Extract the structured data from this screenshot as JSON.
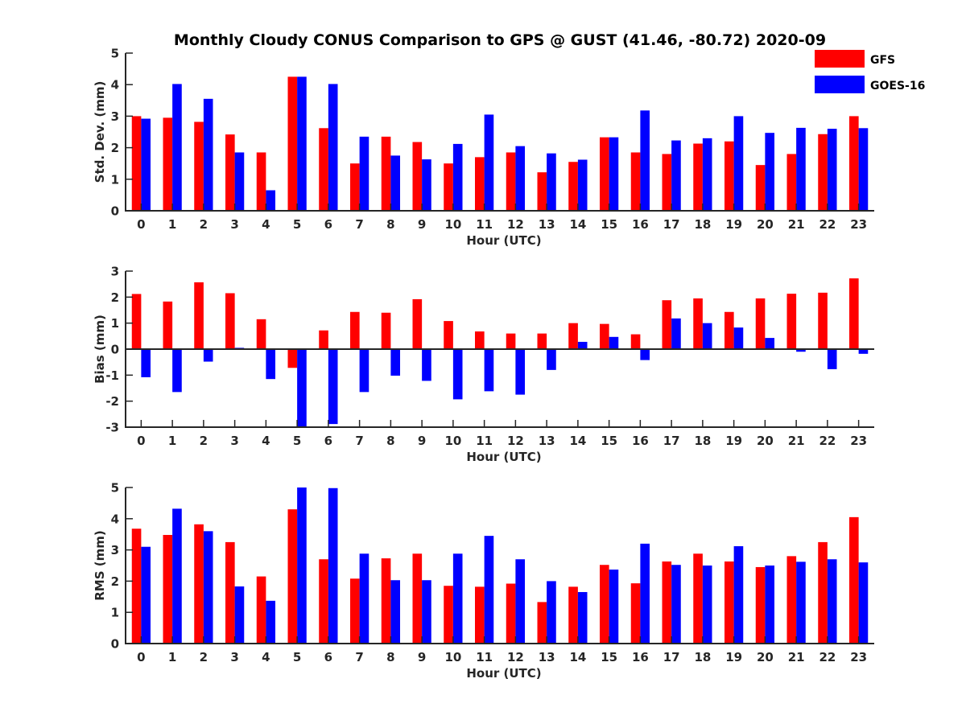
{
  "title": "Monthly Cloudy CONUS Comparison to GPS @ GUST (41.46, -80.72) 2020-09",
  "legend": {
    "placement": "top-right",
    "items": [
      {
        "name": "GFS",
        "color": "#ff0000"
      },
      {
        "name": "GOES-16",
        "color": "#0000ff"
      }
    ]
  },
  "chart_data": [
    {
      "type": "bar",
      "title": "Monthly Cloudy CONUS Comparison to GPS @ GUST (41.46, -80.72) 2020-09",
      "xlabel": "Hour (UTC)",
      "ylabel": "Std. Dev. (mm)",
      "ylim": [
        0,
        5
      ],
      "yticks": [
        0,
        1,
        2,
        3,
        4,
        5
      ],
      "grid": false,
      "categories": [
        "0",
        "1",
        "2",
        "3",
        "4",
        "5",
        "6",
        "7",
        "8",
        "9",
        "10",
        "11",
        "12",
        "13",
        "14",
        "15",
        "16",
        "17",
        "18",
        "19",
        "20",
        "21",
        "22",
        "23"
      ],
      "series": [
        {
          "name": "GFS",
          "color": "#ff0000",
          "values": [
            3.0,
            2.95,
            2.82,
            2.42,
            1.85,
            4.25,
            2.62,
            1.5,
            2.35,
            2.18,
            1.5,
            1.7,
            1.85,
            1.22,
            1.55,
            2.33,
            1.85,
            1.8,
            2.13,
            2.2,
            1.45,
            1.8,
            2.43,
            3.0
          ]
        },
        {
          "name": "GOES-16",
          "color": "#0000ff",
          "values": [
            2.92,
            4.02,
            3.55,
            1.85,
            0.65,
            4.25,
            4.02,
            2.35,
            1.75,
            1.63,
            2.12,
            3.05,
            2.05,
            1.82,
            1.62,
            2.33,
            3.18,
            2.23,
            2.3,
            3.0,
            2.47,
            2.63,
            2.6,
            2.62
          ]
        }
      ]
    },
    {
      "type": "bar",
      "xlabel": "Hour (UTC)",
      "ylabel": "Bias (mm)",
      "ylim": [
        -3,
        3
      ],
      "yticks": [
        -3,
        -2,
        -1,
        0,
        1,
        2,
        3
      ],
      "grid": false,
      "zero_line": true,
      "categories": [
        "0",
        "1",
        "2",
        "3",
        "4",
        "5",
        "6",
        "7",
        "8",
        "9",
        "10",
        "11",
        "12",
        "13",
        "14",
        "15",
        "16",
        "17",
        "18",
        "19",
        "20",
        "21",
        "22",
        "23"
      ],
      "series": [
        {
          "name": "GFS",
          "color": "#ff0000",
          "values": [
            2.12,
            1.83,
            2.57,
            2.15,
            1.15,
            -0.72,
            0.72,
            1.43,
            1.4,
            1.92,
            1.08,
            0.68,
            0.6,
            0.6,
            1.0,
            0.97,
            0.57,
            1.88,
            1.95,
            1.43,
            1.95,
            2.13,
            2.17,
            2.72
          ]
        },
        {
          "name": "GOES-16",
          "color": "#0000ff",
          "values": [
            -1.08,
            -1.65,
            -0.48,
            0.05,
            -1.15,
            -3.0,
            -2.88,
            -1.65,
            -1.02,
            -1.22,
            -1.93,
            -1.62,
            -1.75,
            -0.8,
            0.28,
            0.47,
            -0.42,
            1.18,
            1.0,
            0.83,
            0.43,
            -0.1,
            -0.77,
            -0.18
          ]
        }
      ]
    },
    {
      "type": "bar",
      "xlabel": "Hour (UTC)",
      "ylabel": "RMS (mm)",
      "ylim": [
        0,
        5
      ],
      "yticks": [
        0,
        1,
        2,
        3,
        4,
        5
      ],
      "grid": false,
      "categories": [
        "0",
        "1",
        "2",
        "3",
        "4",
        "5",
        "6",
        "7",
        "8",
        "9",
        "10",
        "11",
        "12",
        "13",
        "14",
        "15",
        "16",
        "17",
        "18",
        "19",
        "20",
        "21",
        "22",
        "23"
      ],
      "series": [
        {
          "name": "GFS",
          "color": "#ff0000",
          "values": [
            3.68,
            3.48,
            3.82,
            3.25,
            2.15,
            4.3,
            2.7,
            2.08,
            2.73,
            2.88,
            1.85,
            1.82,
            1.92,
            1.33,
            1.82,
            2.52,
            1.93,
            2.63,
            2.88,
            2.63,
            2.45,
            2.8,
            3.25,
            4.05
          ]
        },
        {
          "name": "GOES-16",
          "color": "#0000ff",
          "values": [
            3.1,
            4.32,
            3.6,
            1.83,
            1.37,
            5.0,
            4.98,
            2.88,
            2.03,
            2.03,
            2.88,
            3.45,
            2.7,
            2.0,
            1.65,
            2.37,
            3.2,
            2.52,
            2.5,
            3.12,
            2.5,
            2.62,
            2.7,
            2.6
          ]
        }
      ]
    }
  ]
}
